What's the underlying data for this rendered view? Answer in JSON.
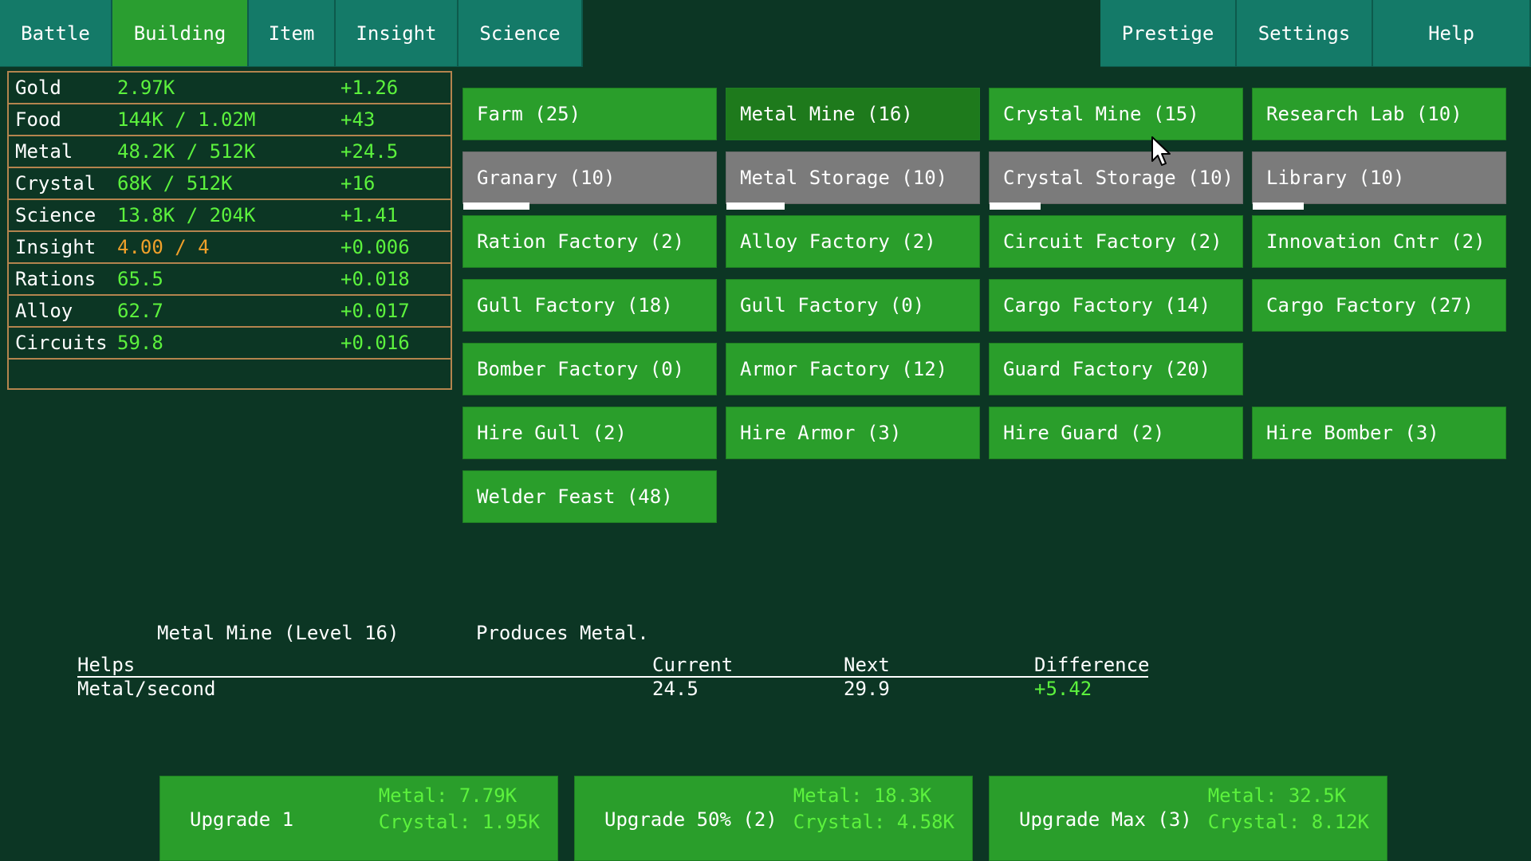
{
  "tabs_left": [
    {
      "label": "Battle",
      "active": false
    },
    {
      "label": "Building",
      "active": true
    },
    {
      "label": "Item",
      "active": false
    },
    {
      "label": "Insight",
      "active": false
    },
    {
      "label": "Science",
      "active": false
    }
  ],
  "tabs_right": [
    {
      "label": "Prestige"
    },
    {
      "label": "Settings"
    },
    {
      "label": "Help"
    }
  ],
  "resources": [
    {
      "name": "Gold",
      "amount": "2.97K",
      "rate": "+1.26"
    },
    {
      "name": "Food",
      "amount": "144K / 1.02M",
      "rate": "+43"
    },
    {
      "name": "Metal",
      "amount": "48.2K / 512K",
      "rate": "+24.5"
    },
    {
      "name": "Crystal",
      "amount": "68K / 512K",
      "rate": "+16"
    },
    {
      "name": "Science",
      "amount": "13.8K / 204K",
      "rate": "+1.41"
    },
    {
      "name": "Insight",
      "amount": "4.00 / 4",
      "rate": "+0.006",
      "amount_color": "#f0a02a"
    },
    {
      "name": "Rations",
      "amount": "65.5",
      "rate": "+0.018"
    },
    {
      "name": "Alloy",
      "amount": "62.7",
      "rate": "+0.017"
    },
    {
      "name": "Circuits",
      "amount": "59.8",
      "rate": "+0.016"
    }
  ],
  "buildings": [
    [
      {
        "label": "Farm (25)"
      },
      {
        "label": "Metal Mine (16)",
        "selected": true
      },
      {
        "label": "Crystal Mine (15)"
      },
      {
        "label": "Research Lab (10)"
      }
    ],
    [
      {
        "label": "Granary (10)",
        "storage": true,
        "fill": 0.26
      },
      {
        "label": "Metal Storage (10)",
        "storage": true,
        "fill": 0.23
      },
      {
        "label": "Crystal Storage (10)",
        "storage": true,
        "fill": 0.2
      },
      {
        "label": "Library (10)",
        "storage": true,
        "fill": 0.2
      }
    ],
    [
      {
        "label": "Ration Factory (2)"
      },
      {
        "label": "Alloy Factory (2)"
      },
      {
        "label": "Circuit Factory (2)"
      },
      {
        "label": "Innovation Cntr (2)"
      }
    ],
    [
      {
        "label": "Gull Factory (18)"
      },
      {
        "label": "Gull Factory (0)"
      },
      {
        "label": "Cargo Factory (14)"
      },
      {
        "label": "Cargo Factory (27)"
      }
    ],
    [
      {
        "label": "Bomber Factory (0)"
      },
      {
        "label": "Armor Factory (12)"
      },
      {
        "label": "Guard Factory (20)"
      },
      null
    ],
    [
      {
        "label": "Hire Gull (2)"
      },
      {
        "label": "Hire Armor (3)"
      },
      {
        "label": "Hire Guard (2)"
      },
      {
        "label": "Hire Bomber (3)"
      }
    ],
    [
      {
        "label": "Welder Feast (48)"
      },
      null,
      null,
      null
    ]
  ],
  "detail": {
    "title": "Metal Mine (Level 16)",
    "description": "Produces Metal.",
    "headers": {
      "helps": "Helps",
      "current": "Current",
      "next": "Next",
      "difference": "Difference"
    },
    "row": {
      "helps": "Metal/second",
      "current": "24.5",
      "next": "29.9",
      "difference": "+5.42"
    }
  },
  "upgrades": [
    {
      "label": "Upgrade 1",
      "metal": "Metal: 7.79K",
      "crystal": "Crystal: 1.95K"
    },
    {
      "label": "Upgrade 50% (2)",
      "metal": "Metal: 18.3K",
      "crystal": "Crystal: 4.58K"
    },
    {
      "label": "Upgrade Max (3)",
      "metal": "Metal: 32.5K",
      "crystal": "Crystal: 8.12K"
    }
  ],
  "colors": {
    "background": "#0c3624",
    "tab": "#147a68",
    "tab_active": "#2a9e30",
    "button": "#2a9e2b",
    "button_selected": "#1e7a1c",
    "storage_button": "#7b7b7b",
    "value_green": "#5cf23d",
    "value_orange": "#f0a02a",
    "resource_border": "#b4844e"
  },
  "cursor_icon": "mouse-pointer-icon"
}
